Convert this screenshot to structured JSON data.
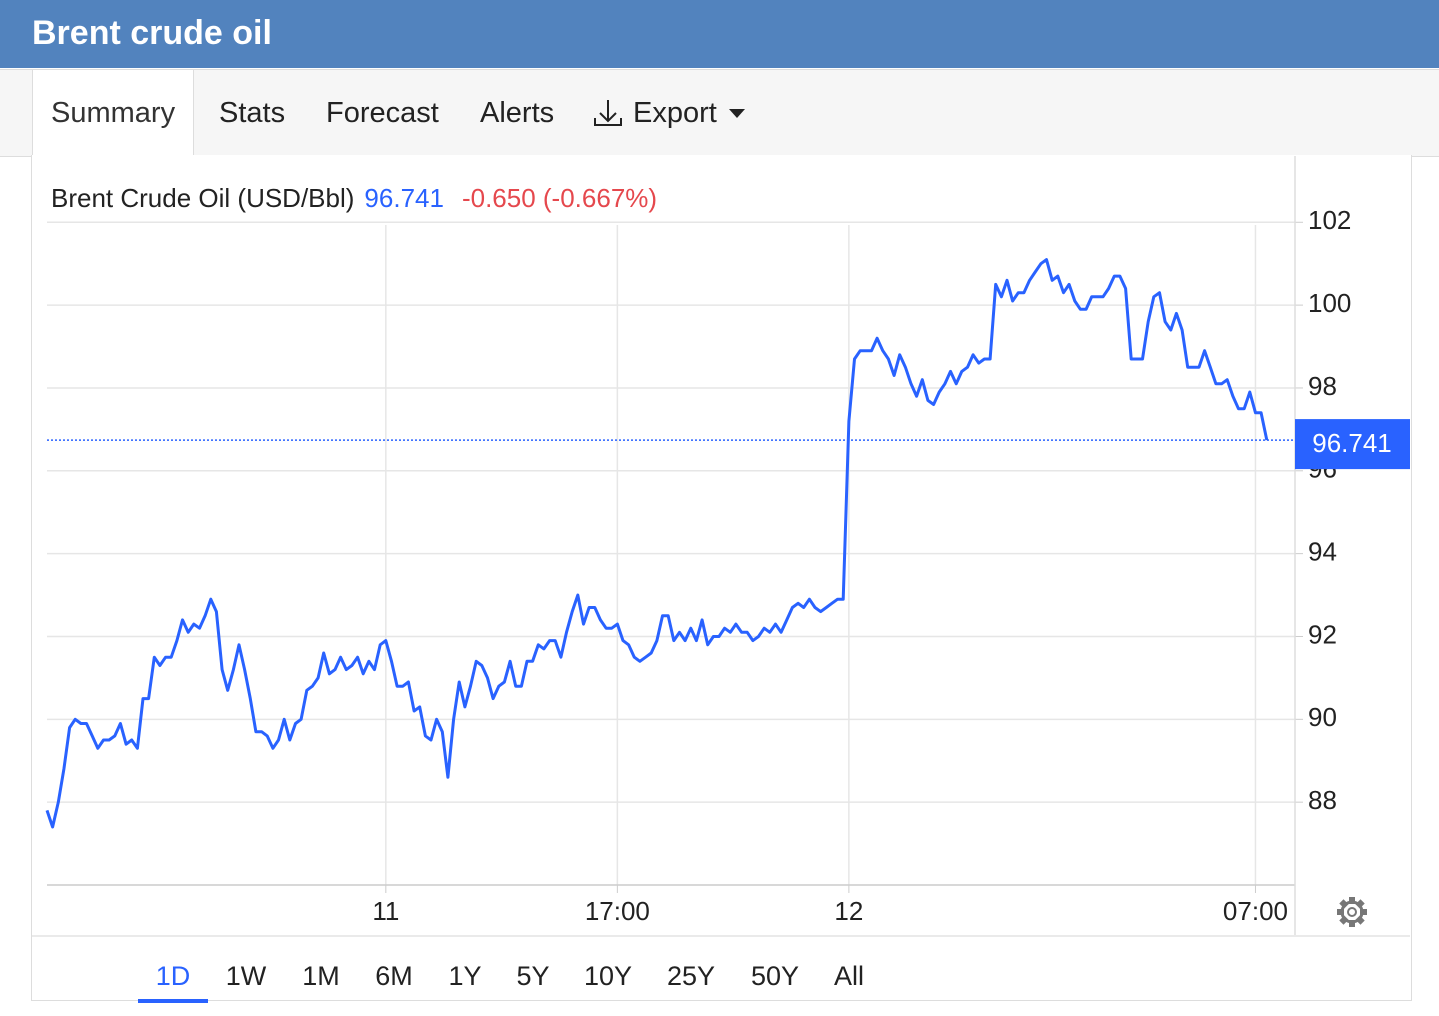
{
  "header": {
    "title": "Brent crude oil"
  },
  "tabs": [
    "Summary",
    "Stats",
    "Forecast",
    "Alerts",
    "Export"
  ],
  "chart_data": {
    "type": "line",
    "series": [
      {
        "name": "Brent Crude Oil (USD/Bbl)",
        "color": "#2962ff",
        "values": [
          87.8,
          87.4,
          88.0,
          88.8,
          89.8,
          90.0,
          89.9,
          89.9,
          89.6,
          89.3,
          89.5,
          89.5,
          89.6,
          89.9,
          89.4,
          89.5,
          89.3,
          90.5,
          90.5,
          91.5,
          91.3,
          91.5,
          91.5,
          91.9,
          92.4,
          92.1,
          92.3,
          92.2,
          92.5,
          92.9,
          92.6,
          91.2,
          90.7,
          91.2,
          91.8,
          91.2,
          90.5,
          89.7,
          89.7,
          89.6,
          89.3,
          89.5,
          90.0,
          89.5,
          89.9,
          90.0,
          90.7,
          90.8,
          91.0,
          91.6,
          91.1,
          91.2,
          91.5,
          91.2,
          91.3,
          91.5,
          91.1,
          91.4,
          91.2,
          91.8,
          91.9,
          91.4,
          90.8,
          90.8,
          90.9,
          90.2,
          90.3,
          89.6,
          89.5,
          90.0,
          89.7,
          88.6,
          90.0,
          90.9,
          90.3,
          90.8,
          91.4,
          91.3,
          91.0,
          90.5,
          90.8,
          90.9,
          91.4,
          90.8,
          90.8,
          91.4,
          91.4,
          91.8,
          91.7,
          91.9,
          91.9,
          91.5,
          92.1,
          92.6,
          93.0,
          92.3,
          92.7,
          92.7,
          92.4,
          92.2,
          92.2,
          92.3,
          91.9,
          91.8,
          91.5,
          91.4,
          91.5,
          91.6,
          91.9,
          92.5,
          92.5,
          91.9,
          92.1,
          91.9,
          92.2,
          91.9,
          92.4,
          91.8,
          92.0,
          92.0,
          92.2,
          92.1,
          92.3,
          92.1,
          92.1,
          91.9,
          92.0,
          92.2,
          92.1,
          92.3,
          92.1,
          92.4,
          92.7,
          92.8,
          92.7,
          92.9,
          92.7,
          92.6,
          92.7,
          92.8,
          92.9,
          92.9,
          97.2,
          98.7,
          98.9,
          98.9,
          98.9,
          99.2,
          98.9,
          98.7,
          98.3,
          98.8,
          98.5,
          98.1,
          97.8,
          98.2,
          97.7,
          97.6,
          97.9,
          98.1,
          98.4,
          98.1,
          98.4,
          98.5,
          98.8,
          98.6,
          98.7,
          98.7,
          100.5,
          100.2,
          100.6,
          100.1,
          100.3,
          100.3,
          100.6,
          100.8,
          101.0,
          101.1,
          100.6,
          100.7,
          100.3,
          100.5,
          100.1,
          99.9,
          99.9,
          100.2,
          100.2,
          100.2,
          100.4,
          100.7,
          100.7,
          100.4,
          98.7,
          98.7,
          98.7,
          99.6,
          100.2,
          100.3,
          99.6,
          99.4,
          99.8,
          99.4,
          98.5,
          98.5,
          98.5,
          98.9,
          98.5,
          98.1,
          98.1,
          98.2,
          97.8,
          97.5,
          97.5,
          97.9,
          97.4,
          97.4,
          96.741
        ]
      }
    ],
    "change": "-0.650 (-0.667%)",
    "change_color": "#e5484d",
    "xlim": [
      0,
      221
    ],
    "xticks": [
      {
        "value": 60,
        "label": "11"
      },
      {
        "value": 101,
        "label": "17:00"
      },
      {
        "value": 142,
        "label": "12"
      },
      {
        "value": 214,
        "label": "07:00"
      }
    ],
    "ylim": [
      86,
      103.6
    ],
    "yticks": [
      88,
      90,
      92,
      94,
      96,
      98,
      100,
      102
    ],
    "grid": true
  },
  "ranges": [
    "1D",
    "1W",
    "1M",
    "6M",
    "1Y",
    "5Y",
    "10Y",
    "25Y",
    "50Y",
    "All"
  ]
}
